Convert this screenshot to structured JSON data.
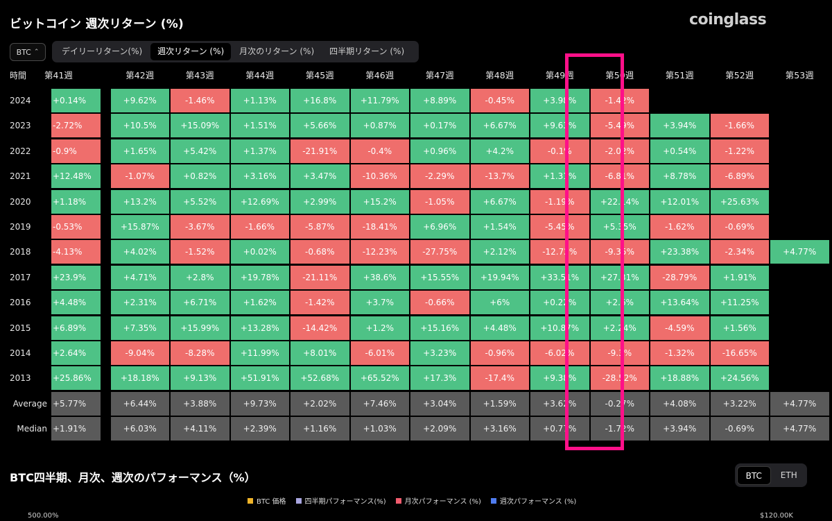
{
  "header": {
    "title": "ビットコイン 週次リターン (%)",
    "brand": "coinglass"
  },
  "asset_select": {
    "value": "BTC",
    "chevron_icon": "up-down-chevron-icon"
  },
  "tabs": [
    {
      "label": "デイリーリターン(%)",
      "active": false
    },
    {
      "label": "週次リターン (%)",
      "active": true
    },
    {
      "label": "月次のリターン (%)",
      "active": false
    },
    {
      "label": "四半期リターン (%)",
      "active": false
    }
  ],
  "table": {
    "corner_label": "時間",
    "columns": [
      "第41週",
      "第42週",
      "第43週",
      "第44週",
      "第45週",
      "第46週",
      "第47週",
      "第48週",
      "第49週",
      "第50週",
      "第51週",
      "第52週",
      "第53週"
    ],
    "rows": [
      {
        "label": "2024",
        "cells": [
          "+0.14%",
          "+9.62%",
          "-1.46%",
          "+1.13%",
          "+16.8%",
          "+11.79%",
          "+8.89%",
          "-0.45%",
          "+3.98%",
          "-1.42%",
          "",
          "",
          ""
        ]
      },
      {
        "label": "2023",
        "cells": [
          "-2.72%",
          "+10.5%",
          "+15.09%",
          "+1.51%",
          "+5.66%",
          "+0.87%",
          "+0.17%",
          "+6.67%",
          "+9.63%",
          "-5.49%",
          "+3.94%",
          "-1.66%",
          ""
        ]
      },
      {
        "label": "2022",
        "cells": [
          "-0.9%",
          "+1.65%",
          "+5.42%",
          "+1.37%",
          "-21.91%",
          "-0.4%",
          "+0.96%",
          "+4.2%",
          "-0.1%",
          "-2.02%",
          "+0.54%",
          "-1.22%",
          ""
        ]
      },
      {
        "label": "2021",
        "cells": [
          "+12.48%",
          "-1.07%",
          "+0.82%",
          "+3.16%",
          "+3.47%",
          "-10.36%",
          "-2.29%",
          "-13.7%",
          "+1.31%",
          "-6.81%",
          "+8.78%",
          "-6.89%",
          ""
        ]
      },
      {
        "label": "2020",
        "cells": [
          "+1.18%",
          "+13.2%",
          "+5.52%",
          "+12.69%",
          "+2.99%",
          "+15.2%",
          "-1.05%",
          "+6.67%",
          "-1.19%",
          "+22.14%",
          "+12.01%",
          "+25.63%",
          ""
        ]
      },
      {
        "label": "2019",
        "cells": [
          "-0.53%",
          "+15.87%",
          "-3.67%",
          "-1.66%",
          "-5.87%",
          "-18.41%",
          "+6.96%",
          "+1.54%",
          "-5.45%",
          "+5.35%",
          "-1.62%",
          "-0.69%",
          ""
        ]
      },
      {
        "label": "2018",
        "cells": [
          "-4.13%",
          "+4.02%",
          "-1.52%",
          "+0.02%",
          "-0.68%",
          "-12.23%",
          "-27.75%",
          "+2.12%",
          "-12.72%",
          "-9.35%",
          "+23.38%",
          "-2.34%",
          "+4.77%"
        ]
      },
      {
        "label": "2017",
        "cells": [
          "+23.9%",
          "+4.71%",
          "+2.8%",
          "+19.78%",
          "-21.11%",
          "+38.6%",
          "+15.55%",
          "+19.94%",
          "+33.51%",
          "+27.31%",
          "-28.79%",
          "+1.91%",
          ""
        ]
      },
      {
        "label": "2016",
        "cells": [
          "+4.48%",
          "+2.31%",
          "+6.71%",
          "+1.62%",
          "-1.42%",
          "+3.7%",
          "-0.66%",
          "+6%",
          "+0.22%",
          "+2.6%",
          "+13.64%",
          "+11.25%",
          ""
        ]
      },
      {
        "label": "2015",
        "cells": [
          "+6.89%",
          "+7.35%",
          "+15.99%",
          "+13.28%",
          "-14.42%",
          "+1.2%",
          "+15.16%",
          "+4.48%",
          "+10.87%",
          "+2.24%",
          "-4.59%",
          "+1.56%",
          ""
        ]
      },
      {
        "label": "2014",
        "cells": [
          "+2.64%",
          "-9.04%",
          "-8.28%",
          "+11.99%",
          "+8.01%",
          "-6.01%",
          "+3.23%",
          "-0.96%",
          "-6.02%",
          "-9.3%",
          "-1.32%",
          "-16.65%",
          ""
        ]
      },
      {
        "label": "2013",
        "cells": [
          "+25.86%",
          "+18.18%",
          "+9.13%",
          "+51.91%",
          "+52.68%",
          "+65.52%",
          "+17.3%",
          "-17.4%",
          "+9.38%",
          "-28.52%",
          "+18.88%",
          "+24.56%",
          ""
        ]
      }
    ],
    "stats": [
      {
        "label": "Average",
        "cells": [
          "+5.77%",
          "+6.44%",
          "+3.88%",
          "+9.73%",
          "+2.02%",
          "+7.46%",
          "+3.04%",
          "+1.59%",
          "+3.62%",
          "-0.27%",
          "+4.08%",
          "+3.22%",
          "+4.77%"
        ]
      },
      {
        "label": "Median",
        "cells": [
          "+1.91%",
          "+6.03%",
          "+4.11%",
          "+2.39%",
          "+1.16%",
          "+1.03%",
          "+2.09%",
          "+3.16%",
          "+0.77%",
          "-1.72%",
          "+3.94%",
          "-0.69%",
          "+4.77%"
        ]
      }
    ],
    "highlighted_column": "第50週"
  },
  "section2": {
    "title": "BTC四半期、月次、週次のパフォーマンス（%）",
    "toggle": [
      {
        "label": "BTC",
        "active": true
      },
      {
        "label": "ETH",
        "active": false
      }
    ],
    "legend": [
      {
        "label": "BTC 価格",
        "color": "#f0b429"
      },
      {
        "label": "四半期パフォーマンス(%)",
        "color": "#a9a6e0"
      },
      {
        "label": "月次パフォーマンス (%)",
        "color": "#f25c6e"
      },
      {
        "label": "週次パフォーマンス (%)",
        "color": "#4f7cf0"
      }
    ],
    "axis_left_top": "500.00%",
    "axis_right_top": "$120.00K"
  },
  "colors": {
    "positive": "#4ec286",
    "negative": "#ef6e6c",
    "stat": "#5a5a5a",
    "highlight": "#ff1089"
  }
}
